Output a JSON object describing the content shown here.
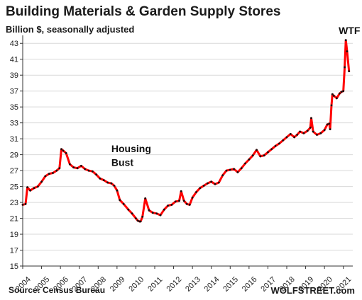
{
  "title": "Building Materials & Garden Supply Stores",
  "subtitle": "Billion $, seasonally adjusted",
  "source": "Source: Census Bureau",
  "brand": "WOLFSTREET.com",
  "colors": {
    "line": "#ff0000",
    "markers": "#111111",
    "grid": "#d9d9d9",
    "axis": "#333333"
  },
  "chart_data": {
    "type": "line",
    "title": "Building Materials & Garden Supply Stores",
    "subtitle": "Billion $, seasonally adjusted",
    "ylim": [
      15,
      43
    ],
    "yticks": [
      15,
      17,
      19,
      21,
      23,
      25,
      27,
      29,
      31,
      33,
      35,
      37,
      39,
      41,
      43
    ],
    "xlim": [
      2004,
      2021.5
    ],
    "xticks": [
      "2004",
      "2005",
      "2006",
      "2007",
      "2008",
      "2009",
      "2010",
      "2011",
      "2012",
      "2013",
      "2014",
      "2015",
      "2016",
      "2017",
      "2018",
      "2019",
      "2020",
      "2021"
    ],
    "grid": "horizontal",
    "annotations": [
      {
        "text": "Housing",
        "x": 2008.7,
        "y": 29.3
      },
      {
        "text": "Bust",
        "x": 2008.7,
        "y": 27.6
      },
      {
        "text": "WTF",
        "x": 2020.75,
        "y": 44.2
      }
    ],
    "series": [
      {
        "x": [
          2004.0,
          2004.15,
          2004.25,
          2004.4,
          2004.6,
          2004.8,
          2005.0,
          2005.2,
          2005.4,
          2005.6,
          2005.8,
          2005.95,
          2006.05,
          2006.15,
          2006.3,
          2006.5,
          2006.7,
          2006.9,
          2007.1,
          2007.3,
          2007.5,
          2007.7,
          2007.9,
          2008.1,
          2008.3,
          2008.5,
          2008.7,
          2008.85,
          2009.0,
          2009.15,
          2009.35,
          2009.6,
          2009.8,
          2010.0,
          2010.1,
          2010.2,
          2010.25,
          2010.35,
          2010.5,
          2010.7,
          2010.9,
          2011.1,
          2011.3,
          2011.5,
          2011.7,
          2011.9,
          2012.1,
          2012.3,
          2012.4,
          2012.55,
          2012.7,
          2012.85,
          2013.0,
          2013.2,
          2013.4,
          2013.6,
          2013.8,
          2014.0,
          2014.2,
          2014.4,
          2014.6,
          2014.8,
          2015.0,
          2015.2,
          2015.4,
          2015.6,
          2015.8,
          2016.0,
          2016.2,
          2016.4,
          2016.6,
          2016.8,
          2017.0,
          2017.2,
          2017.4,
          2017.6,
          2017.8,
          2018.0,
          2018.2,
          2018.4,
          2018.55,
          2018.7,
          2018.9,
          2019.1,
          2019.25,
          2019.3,
          2019.4,
          2019.6,
          2019.8,
          2020.0,
          2020.15,
          2020.25,
          2020.3,
          2020.37,
          2020.42,
          2020.5,
          2020.65,
          2020.8,
          2020.9,
          2021.0,
          2021.07,
          2021.13,
          2021.2,
          2021.3
        ],
        "values": [
          22.7,
          22.8,
          24.9,
          24.5,
          24.8,
          25.0,
          25.6,
          26.3,
          26.6,
          26.7,
          27.0,
          27.3,
          29.7,
          29.5,
          29.2,
          27.8,
          27.4,
          27.3,
          27.6,
          27.2,
          27.0,
          26.9,
          26.5,
          26.0,
          25.8,
          25.5,
          25.4,
          25.1,
          24.5,
          23.3,
          22.8,
          22.1,
          21.6,
          21.0,
          20.7,
          20.6,
          20.6,
          21.2,
          23.5,
          22.0,
          21.7,
          21.6,
          21.4,
          22.1,
          22.6,
          22.7,
          23.1,
          23.2,
          24.4,
          23.2,
          22.8,
          22.7,
          23.6,
          24.3,
          24.8,
          25.1,
          25.4,
          25.6,
          25.3,
          25.5,
          26.4,
          27.0,
          27.1,
          27.2,
          26.8,
          27.3,
          27.9,
          28.4,
          28.9,
          29.6,
          28.8,
          28.9,
          29.3,
          29.7,
          30.1,
          30.4,
          30.8,
          31.2,
          31.6,
          31.2,
          31.5,
          31.9,
          31.7,
          32.0,
          32.4,
          33.6,
          31.9,
          31.5,
          31.7,
          32.1,
          32.8,
          32.9,
          32.2,
          35.2,
          36.6,
          36.4,
          36.1,
          36.7,
          36.9,
          37.0,
          40.0,
          43.4,
          42.0,
          39.5
        ]
      }
    ]
  }
}
